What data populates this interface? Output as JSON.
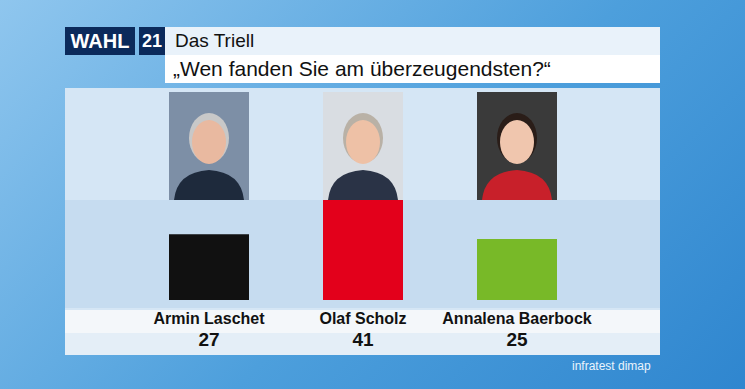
{
  "logo": {
    "text": "WAHL",
    "number": 21
  },
  "source": "infratest dimap",
  "chart_data": {
    "type": "bar",
    "subtitle": "Das Triell",
    "title": "„Wen fanden Sie am überzeugendsten?“",
    "categories": [
      "Armin Laschet",
      "Olaf Scholz",
      "Annalena Baerbock"
    ],
    "values": [
      27,
      41,
      25
    ],
    "colors": [
      "#111111",
      "#e3001b",
      "#78b928"
    ],
    "ylim": [
      0,
      41
    ],
    "data_labels": true,
    "tick_labels": "x"
  }
}
